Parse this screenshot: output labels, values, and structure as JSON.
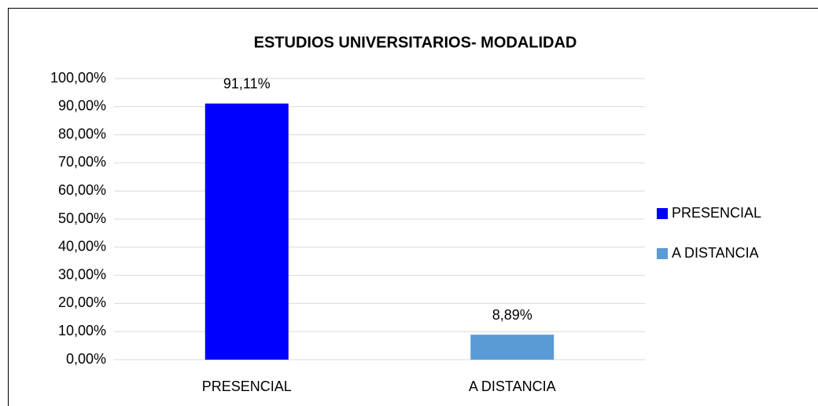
{
  "chart_data": {
    "type": "bar",
    "title": "ESTUDIOS UNIVERSITARIOS- MODALIDAD",
    "categories": [
      "PRESENCIAL",
      "A DISTANCIA"
    ],
    "values": [
      91.11,
      8.89
    ],
    "value_labels": [
      "91,11%",
      "8,89%"
    ],
    "colors": [
      "#0000ff",
      "#5b9bd5"
    ],
    "ylim": [
      0,
      100
    ],
    "yticks": [
      {
        "value": 0,
        "label": "0,00%"
      },
      {
        "value": 10,
        "label": "10,00%"
      },
      {
        "value": 20,
        "label": "20,00%"
      },
      {
        "value": 30,
        "label": "30,00%"
      },
      {
        "value": 40,
        "label": "40,00%"
      },
      {
        "value": 50,
        "label": "50,00%"
      },
      {
        "value": 60,
        "label": "60,00%"
      },
      {
        "value": 70,
        "label": "70,00%"
      },
      {
        "value": 80,
        "label": "80,00%"
      },
      {
        "value": 90,
        "label": "90,00%"
      },
      {
        "value": 100,
        "label": "100,00%"
      }
    ],
    "grid": true,
    "legend": "right"
  }
}
